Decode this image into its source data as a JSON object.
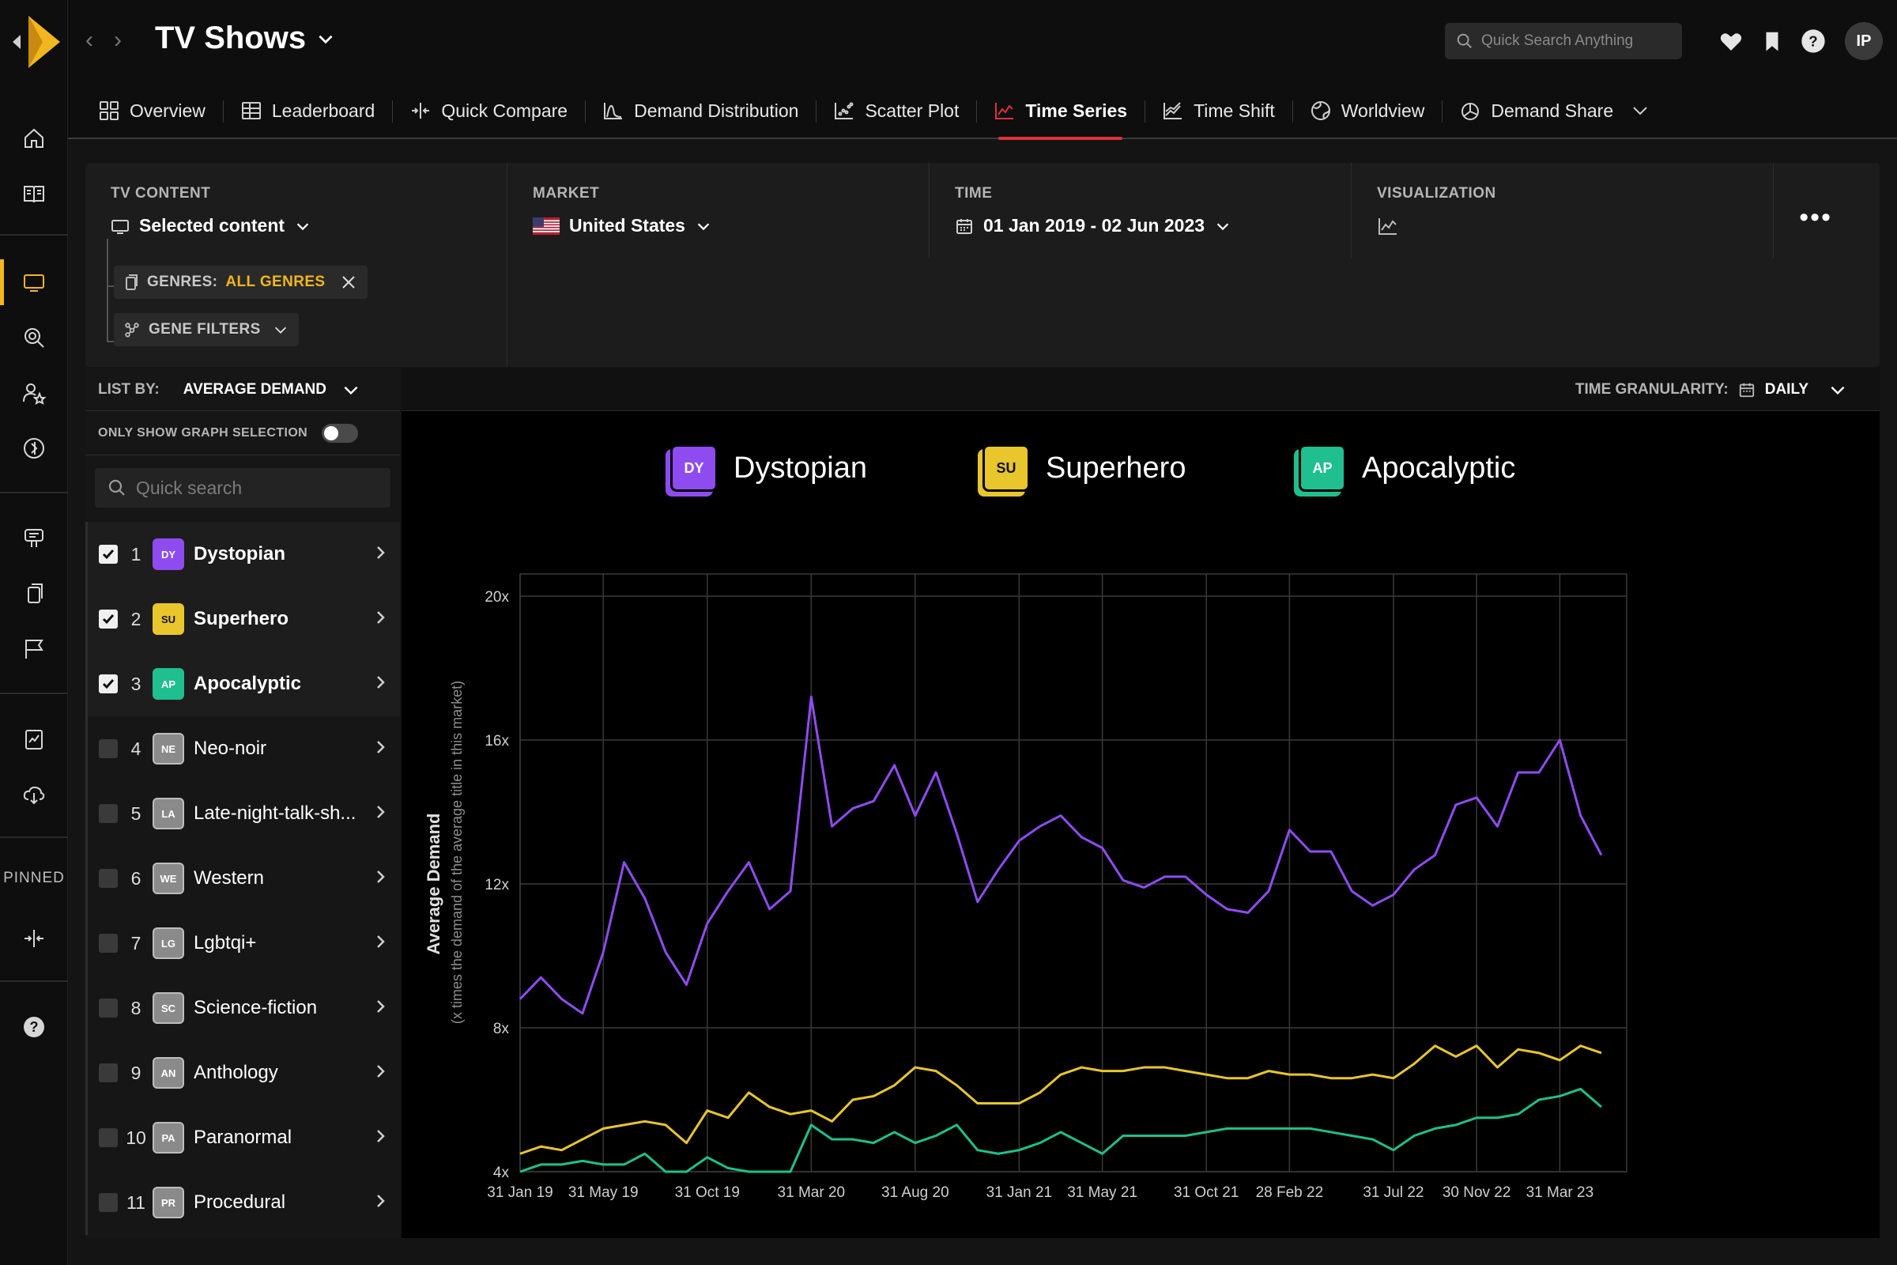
{
  "app": {
    "title": "TV Shows",
    "search_placeholder": "Quick Search Anything",
    "avatar_initials": "IP",
    "rail_pinned_label": "PINNED"
  },
  "tabs": [
    {
      "label": "Overview",
      "icon": "grid-icon"
    },
    {
      "label": "Leaderboard",
      "icon": "table-icon"
    },
    {
      "label": "Quick Compare",
      "icon": "compare-icon"
    },
    {
      "label": "Demand Distribution",
      "icon": "distribution-icon"
    },
    {
      "label": "Scatter Plot",
      "icon": "scatter-icon"
    },
    {
      "label": "Time Series",
      "icon": "line-chart-icon",
      "active": true
    },
    {
      "label": "Time Shift",
      "icon": "time-shift-icon"
    },
    {
      "label": "Worldview",
      "icon": "globe-icon"
    },
    {
      "label": "Demand Share",
      "icon": "pie-icon"
    }
  ],
  "filters": {
    "tv_content": {
      "label": "TV CONTENT",
      "value": "Selected content"
    },
    "genres_chip": {
      "prefix": "GENRES:",
      "value": "ALL GENRES"
    },
    "gene_filters": "GENE FILTERS",
    "market": {
      "label": "MARKET",
      "value": "United States"
    },
    "time": {
      "label": "TIME",
      "value": "01 Jan 2019 - 02 Jun 2023"
    },
    "visualization": {
      "label": "VISUALIZATION"
    }
  },
  "list": {
    "list_by_label": "LIST BY:",
    "list_by_value": "AVERAGE DEMAND",
    "only_show_label": "ONLY SHOW GRAPH SELECTION",
    "search_placeholder": "Quick search",
    "items": [
      {
        "rank": "1",
        "badge": "DY",
        "name": "Dystopian",
        "checked": true,
        "color": "#8e4cf0"
      },
      {
        "rank": "2",
        "badge": "SU",
        "name": "Superhero",
        "checked": true,
        "color": "#e8c62c"
      },
      {
        "rank": "3",
        "badge": "AP",
        "name": "Apocalyptic",
        "checked": true,
        "color": "#1fbf8f"
      },
      {
        "rank": "4",
        "badge": "NE",
        "name": "Neo-noir",
        "checked": false,
        "color": "#8a8a8a"
      },
      {
        "rank": "5",
        "badge": "LA",
        "name": "Late-night-talk-sh...",
        "checked": false,
        "color": "#8a8a8a"
      },
      {
        "rank": "6",
        "badge": "WE",
        "name": "Western",
        "checked": false,
        "color": "#8a8a8a"
      },
      {
        "rank": "7",
        "badge": "LG",
        "name": "Lgbtqi+",
        "checked": false,
        "color": "#8a8a8a"
      },
      {
        "rank": "8",
        "badge": "SC",
        "name": "Science-fiction",
        "checked": false,
        "color": "#8a8a8a"
      },
      {
        "rank": "9",
        "badge": "AN",
        "name": "Anthology",
        "checked": false,
        "color": "#8a8a8a"
      },
      {
        "rank": "10",
        "badge": "PA",
        "name": "Paranormal",
        "checked": false,
        "color": "#8a8a8a"
      },
      {
        "rank": "11",
        "badge": "PR",
        "name": "Procedural",
        "checked": false,
        "color": "#8a8a8a"
      }
    ]
  },
  "granularity": {
    "label": "TIME GRANULARITY:",
    "value": "DAILY"
  },
  "chart_data": {
    "type": "line",
    "ylabel": "Average Demand",
    "ylabel_sub": "(x times the demand of the average title in this market)",
    "ylim": [
      4,
      20
    ],
    "yticks": [
      "4x",
      "8x",
      "12x",
      "16x",
      "20x"
    ],
    "x_tick_labels": [
      "31 Jan 19",
      "31 May 19",
      "31 Oct 19",
      "31 Mar 20",
      "31 Aug 20",
      "31 Jan 21",
      "31 May 21",
      "31 Oct 21",
      "28 Feb 22",
      "31 Jul 22",
      "30 Nov 22",
      "31 Mar 23"
    ],
    "x_tick_months": [
      0,
      4,
      9,
      14,
      19,
      24,
      28,
      33,
      37,
      42,
      46,
      50
    ],
    "x_months": [
      0,
      1,
      2,
      3,
      4,
      5,
      6,
      7,
      8,
      9,
      10,
      11,
      12,
      13,
      14,
      15,
      16,
      17,
      18,
      19,
      20,
      21,
      22,
      23,
      24,
      25,
      26,
      27,
      28,
      29,
      30,
      31,
      32,
      33,
      34,
      35,
      36,
      37,
      38,
      39,
      40,
      41,
      42,
      43,
      44,
      45,
      46,
      47,
      48,
      49,
      50,
      51,
      52
    ],
    "series": [
      {
        "name": "Dystopian",
        "badge": "DY",
        "color": "#8e4cf0",
        "values": [
          8.8,
          9.4,
          8.8,
          8.4,
          10.1,
          12.6,
          11.6,
          10.1,
          9.2,
          10.9,
          11.8,
          12.6,
          11.3,
          11.8,
          17.2,
          13.6,
          14.1,
          14.3,
          15.3,
          13.9,
          15.1,
          13.4,
          11.5,
          12.4,
          13.2,
          13.6,
          13.9,
          13.3,
          13.0,
          12.1,
          11.9,
          12.2,
          12.2,
          11.7,
          11.3,
          11.2,
          11.8,
          13.5,
          12.9,
          12.9,
          11.8,
          11.4,
          11.7,
          12.4,
          12.8,
          14.2,
          14.4,
          13.6,
          15.1,
          15.1,
          16.0,
          13.9,
          12.8
        ]
      },
      {
        "name": "Superhero",
        "badge": "SU",
        "color": "#e8c62c",
        "values": [
          4.5,
          4.7,
          4.6,
          4.9,
          5.2,
          5.3,
          5.4,
          5.3,
          4.8,
          5.7,
          5.5,
          6.2,
          5.8,
          5.6,
          5.7,
          5.4,
          6.0,
          6.1,
          6.4,
          6.9,
          6.8,
          6.4,
          5.9,
          5.9,
          5.9,
          6.2,
          6.7,
          6.9,
          6.8,
          6.8,
          6.9,
          6.9,
          6.8,
          6.7,
          6.6,
          6.6,
          6.8,
          6.7,
          6.7,
          6.6,
          6.6,
          6.7,
          6.6,
          7.0,
          7.5,
          7.2,
          7.5,
          6.9,
          7.4,
          7.3,
          7.1,
          7.5,
          7.3
        ]
      },
      {
        "name": "Apocalyptic",
        "badge": "AP",
        "color": "#1fbf8f",
        "values": [
          4.0,
          4.2,
          4.2,
          4.3,
          4.2,
          4.2,
          4.5,
          4.0,
          4.0,
          4.4,
          4.1,
          4.0,
          4.0,
          4.0,
          5.3,
          4.9,
          4.9,
          4.8,
          5.1,
          4.8,
          5.0,
          5.3,
          4.6,
          4.5,
          4.6,
          4.8,
          5.1,
          4.8,
          4.5,
          5.0,
          5.0,
          5.0,
          5.0,
          5.1,
          5.2,
          5.2,
          5.2,
          5.2,
          5.2,
          5.1,
          5.0,
          4.9,
          4.6,
          5.0,
          5.2,
          5.3,
          5.5,
          5.5,
          5.6,
          6.0,
          6.1,
          6.3,
          5.8
        ]
      }
    ]
  }
}
